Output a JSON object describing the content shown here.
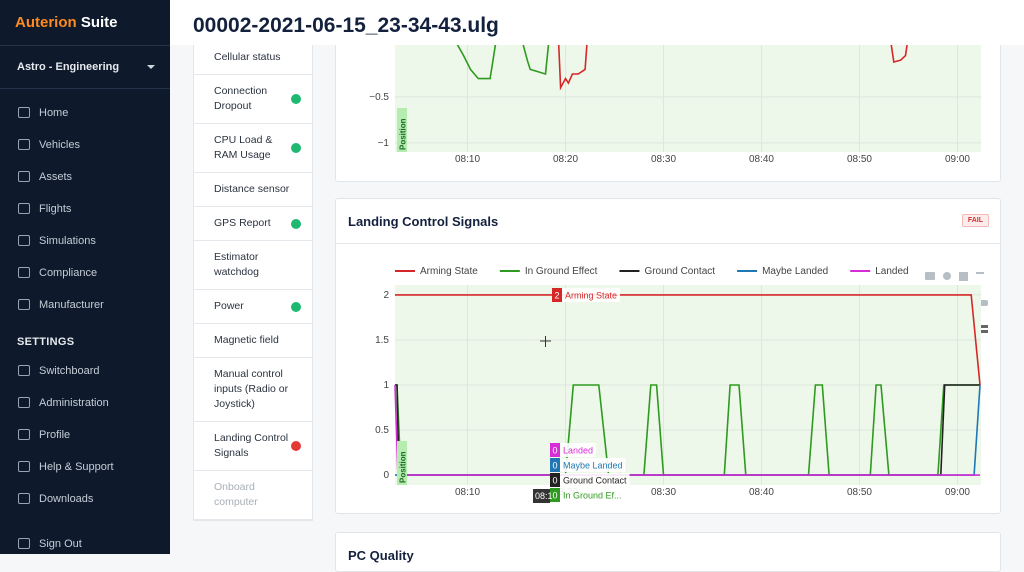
{
  "sidebar": {
    "logo": {
      "brand": "Auterion",
      "product": "Suite"
    },
    "org": "Astro - Engineering",
    "nav": [
      "Home",
      "Vehicles",
      "Assets",
      "Flights",
      "Simulations",
      "Compliance",
      "Manufacturer"
    ],
    "settings_title": "SETTINGS",
    "settings": [
      "Switchboard",
      "Administration",
      "Profile",
      "Help & Support",
      "Downloads"
    ],
    "sign_out": "Sign Out"
  },
  "header": {
    "title": "00002-2021-06-15_23-34-43.ulg"
  },
  "checks": [
    {
      "label": "Cellular status",
      "dot": null
    },
    {
      "label": "Connection Dropout",
      "dot": "#1fb870"
    },
    {
      "label": "CPU Load & RAM Usage",
      "dot": "#1fb870"
    },
    {
      "label": "Distance sensor",
      "dot": null
    },
    {
      "label": "GPS Report",
      "dot": "#1fb870"
    },
    {
      "label": "Estimator watchdog",
      "dot": null
    },
    {
      "label": "Power",
      "dot": "#1fb870"
    },
    {
      "label": "Magnetic field",
      "dot": null
    },
    {
      "label": "Manual control inputs (Radio or Joystick)",
      "dot": null
    },
    {
      "label": "Landing Control Signals",
      "dot": "#e53935"
    },
    {
      "label": "Onboard computer",
      "dot": null,
      "disabled": true
    }
  ],
  "charts": [
    {
      "type": "line",
      "region_label": "Position",
      "xlim": [
        2.6,
        62.4
      ],
      "xticks": [
        {
          "value": 10,
          "label": "08:10"
        },
        {
          "value": 20,
          "label": "08:20"
        },
        {
          "value": 30,
          "label": "08:30"
        },
        {
          "value": 40,
          "label": "08:40"
        },
        {
          "value": 50,
          "label": "08:50"
        },
        {
          "value": 60,
          "label": "09:00"
        }
      ],
      "ylim": [
        -1.1,
        0.12
      ],
      "yticks": [
        {
          "value": -0.5,
          "label": "−0.5"
        },
        {
          "value": -1,
          "label": "−1"
        }
      ],
      "series": [
        {
          "color": "#2e9a1f",
          "x": [
            8.8,
            9.6,
            10.3,
            11.1,
            12.3,
            12.6,
            12.9
          ],
          "values": [
            0.1,
            -0.05,
            -0.2,
            -0.3,
            -0.3,
            -0.1,
            0.1
          ]
        },
        {
          "color": "#2e9a1f",
          "x": [
            15.6,
            16.1,
            16.4,
            17.96,
            18.3
          ],
          "values": [
            0.1,
            -0.1,
            -0.2,
            -0.25,
            0.1
          ]
        },
        {
          "color": "#d62728",
          "x": [
            19.3,
            19.5,
            20.0,
            20.3,
            20.7,
            21.3,
            22.0,
            22.2
          ],
          "values": [
            0.1,
            -0.4,
            -0.3,
            -0.35,
            -0.25,
            -0.25,
            -0.2,
            0.1
          ]
        },
        {
          "color": "#d62728",
          "x": [
            53.2,
            53.5,
            54.2,
            54.7,
            54.9
          ],
          "values": [
            0.1,
            -0.12,
            -0.1,
            -0.05,
            0.1
          ]
        }
      ]
    },
    {
      "type": "line",
      "title": "Landing Control Signals",
      "badge": "FAIL",
      "region_label": "Position",
      "xlim": [
        2.6,
        62.4
      ],
      "xticks": [
        {
          "value": 10,
          "label": "08:10"
        },
        {
          "value": 20,
          "label": "08:20"
        },
        {
          "value": 30,
          "label": "08:30"
        },
        {
          "value": 40,
          "label": "08:40"
        },
        {
          "value": 50,
          "label": "08:50"
        },
        {
          "value": 60,
          "label": "09:00"
        }
      ],
      "ylim": [
        -0.11,
        2.11
      ],
      "yticks": [
        0,
        0.5,
        1,
        1.5,
        2
      ],
      "series": [
        {
          "name": "Arming State",
          "color": "#d62728",
          "x": [
            2.6,
            61.4,
            62.3
          ],
          "values": [
            2,
            2,
            1
          ]
        },
        {
          "name": "In Ground Effect",
          "color": "#2e9a1f",
          "x": [
            2.6,
            2.8,
            3.2,
            20.0,
            20.8,
            23.4,
            24.4,
            28.0,
            28.7,
            29.3,
            30.0,
            36.2,
            36.8,
            37.7,
            38.4,
            44.8,
            45.5,
            46.2,
            46.9,
            51.1,
            51.7,
            52.2,
            53.0,
            58.0,
            58.6,
            62.3
          ],
          "values": [
            1,
            1,
            0,
            0,
            1,
            1,
            0,
            0,
            1,
            1,
            0,
            0,
            1,
            1,
            0,
            0,
            1,
            1,
            0,
            0,
            1,
            1,
            0,
            0,
            1,
            1
          ]
        },
        {
          "name": "Ground Contact",
          "color": "#222222",
          "x": [
            2.6,
            2.8,
            3.0,
            58.3,
            58.7,
            62.3
          ],
          "values": [
            1,
            1,
            0,
            0,
            1,
            1
          ]
        },
        {
          "name": "Maybe Landed",
          "color": "#1f77b4",
          "x": [
            2.6,
            61.7,
            62.3
          ],
          "values": [
            0,
            0,
            1
          ]
        },
        {
          "name": "Landed",
          "color": "#d62dd6",
          "x": [
            2.6,
            2.9,
            62.3
          ],
          "values": [
            1,
            0,
            0
          ]
        }
      ],
      "hover": {
        "x_label": "08:1",
        "items": [
          {
            "value": "2",
            "name": "Arming State",
            "color": "#d62728"
          },
          {
            "value": "0",
            "name": "Landed",
            "color": "#d62dd6"
          },
          {
            "value": "0",
            "name": "Maybe Landed",
            "color": "#1f77b4"
          },
          {
            "value": "0",
            "name": "Ground Contact",
            "color": "#222222"
          },
          {
            "value": "0",
            "name": "In Ground Ef...",
            "color": "#2e9a1f"
          }
        ]
      }
    }
  ],
  "next_card": {
    "title": "PC Quality"
  }
}
